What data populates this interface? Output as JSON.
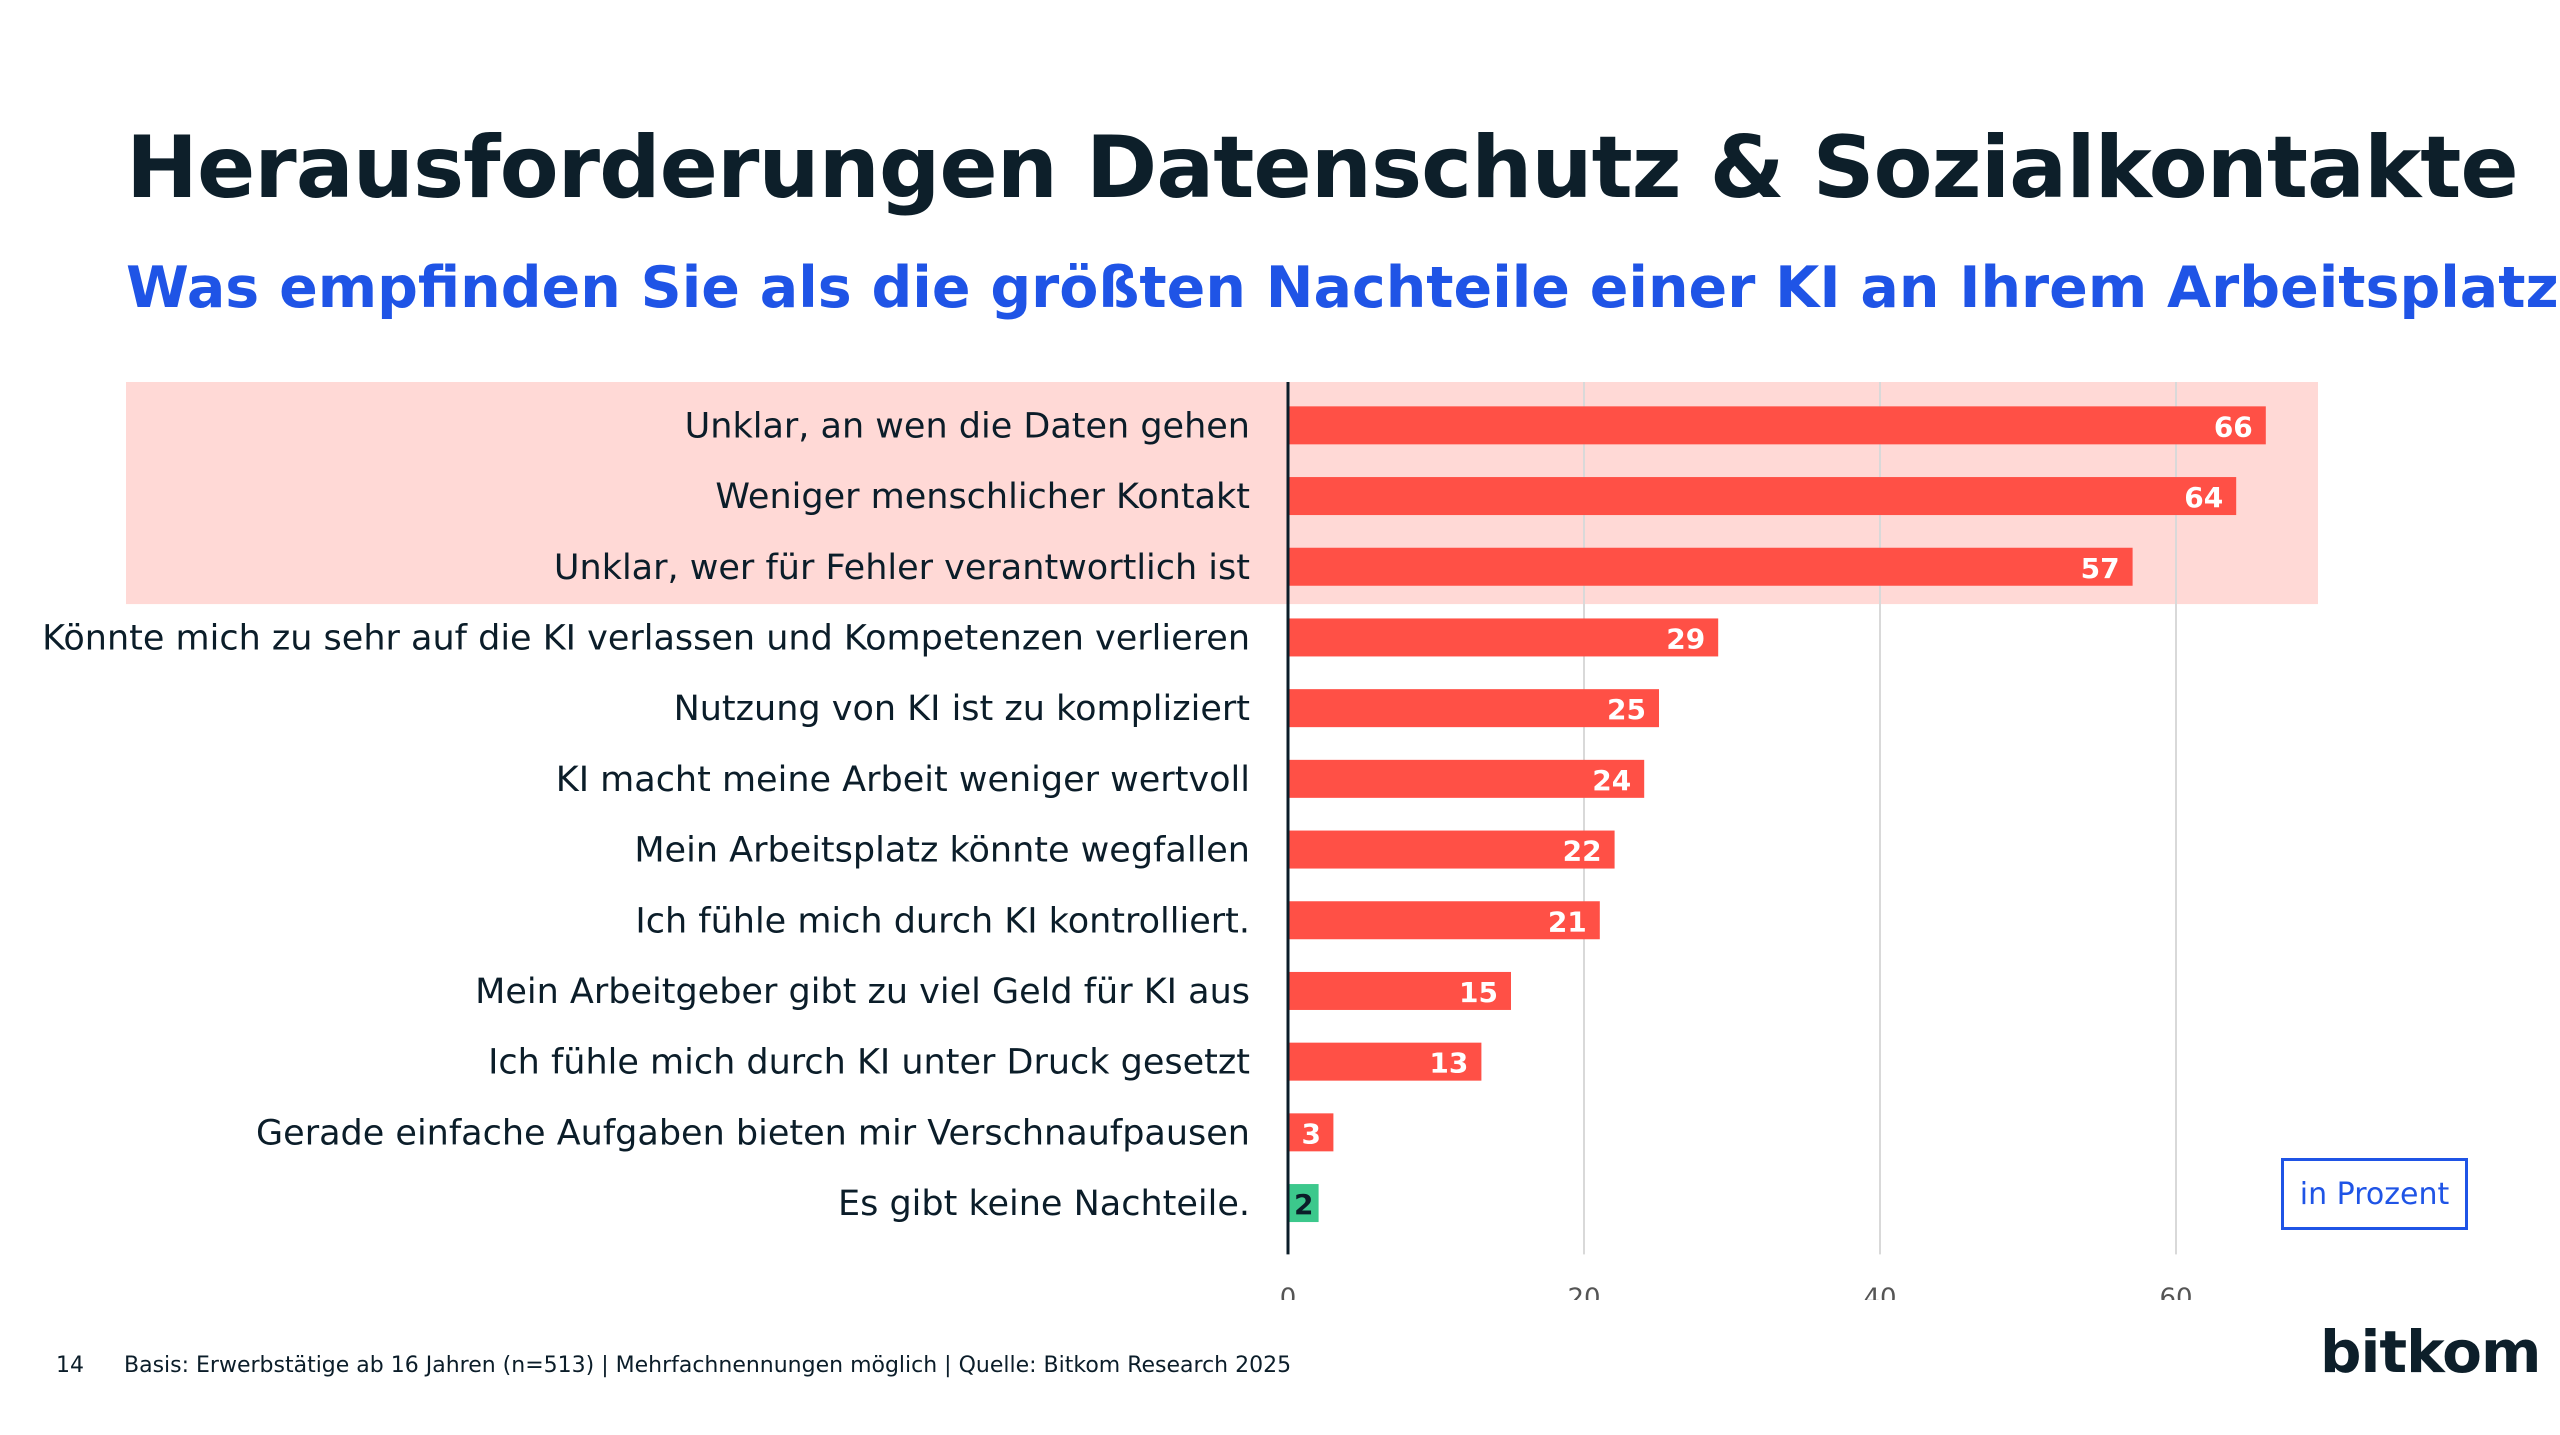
{
  "title": "Herausforderungen Datenschutz & Sozialkontakte",
  "subtitle": "Was empfinden Sie als die größten Nachteile einer KI an Ihrem Arbeitsplatz?",
  "unit_label": "in Prozent",
  "footer": {
    "page_number": "14",
    "note": "Basis: Erwerbstätige ab 16 Jahren (n=513) | Mehrfachnennungen möglich | Quelle: Bitkom Research 2025"
  },
  "logo": {
    "text": "bitkom"
  },
  "colors": {
    "bar": "#ff5046",
    "bar_highlight_none": "#3cc88c",
    "highlight_band": "#ffd9d6",
    "grid": "#d9d9d9",
    "axis": "#0b1d29",
    "title": "#0d1f2a",
    "accent": "#1f54e6"
  },
  "chart_data": {
    "type": "bar",
    "orientation": "horizontal",
    "categories": [
      "Unklar, an wen die Daten gehen",
      "Weniger menschlicher Kontakt",
      "Unklar, wer für Fehler verantwortlich ist",
      "Könnte mich zu sehr auf die KI verlassen und Kompetenzen verlieren",
      "Nutzung von KI ist zu kompliziert",
      "KI macht meine Arbeit weniger wertvoll",
      "Mein Arbeitsplatz könnte wegfallen",
      "Ich fühle mich durch KI kontrolliert.",
      "Mein Arbeitgeber gibt zu viel Geld für KI aus",
      "Ich fühle mich durch KI unter Druck gesetzt",
      "Gerade einfache Aufgaben bieten mir Verschnaufpausen",
      "Es gibt keine Nachteile."
    ],
    "values": [
      66,
      64,
      57,
      29,
      25,
      24,
      22,
      21,
      15,
      13,
      3,
      2
    ],
    "highlighted_count": 3,
    "bar_colors": [
      "#ff5046",
      "#ff5046",
      "#ff5046",
      "#ff5046",
      "#ff5046",
      "#ff5046",
      "#ff5046",
      "#ff5046",
      "#ff5046",
      "#ff5046",
      "#ff5046",
      "#3cc88c"
    ],
    "xlim": [
      0,
      70
    ],
    "xticks": [
      0,
      20,
      40,
      60
    ],
    "grid": true,
    "xlabel": "",
    "ylabel": ""
  }
}
